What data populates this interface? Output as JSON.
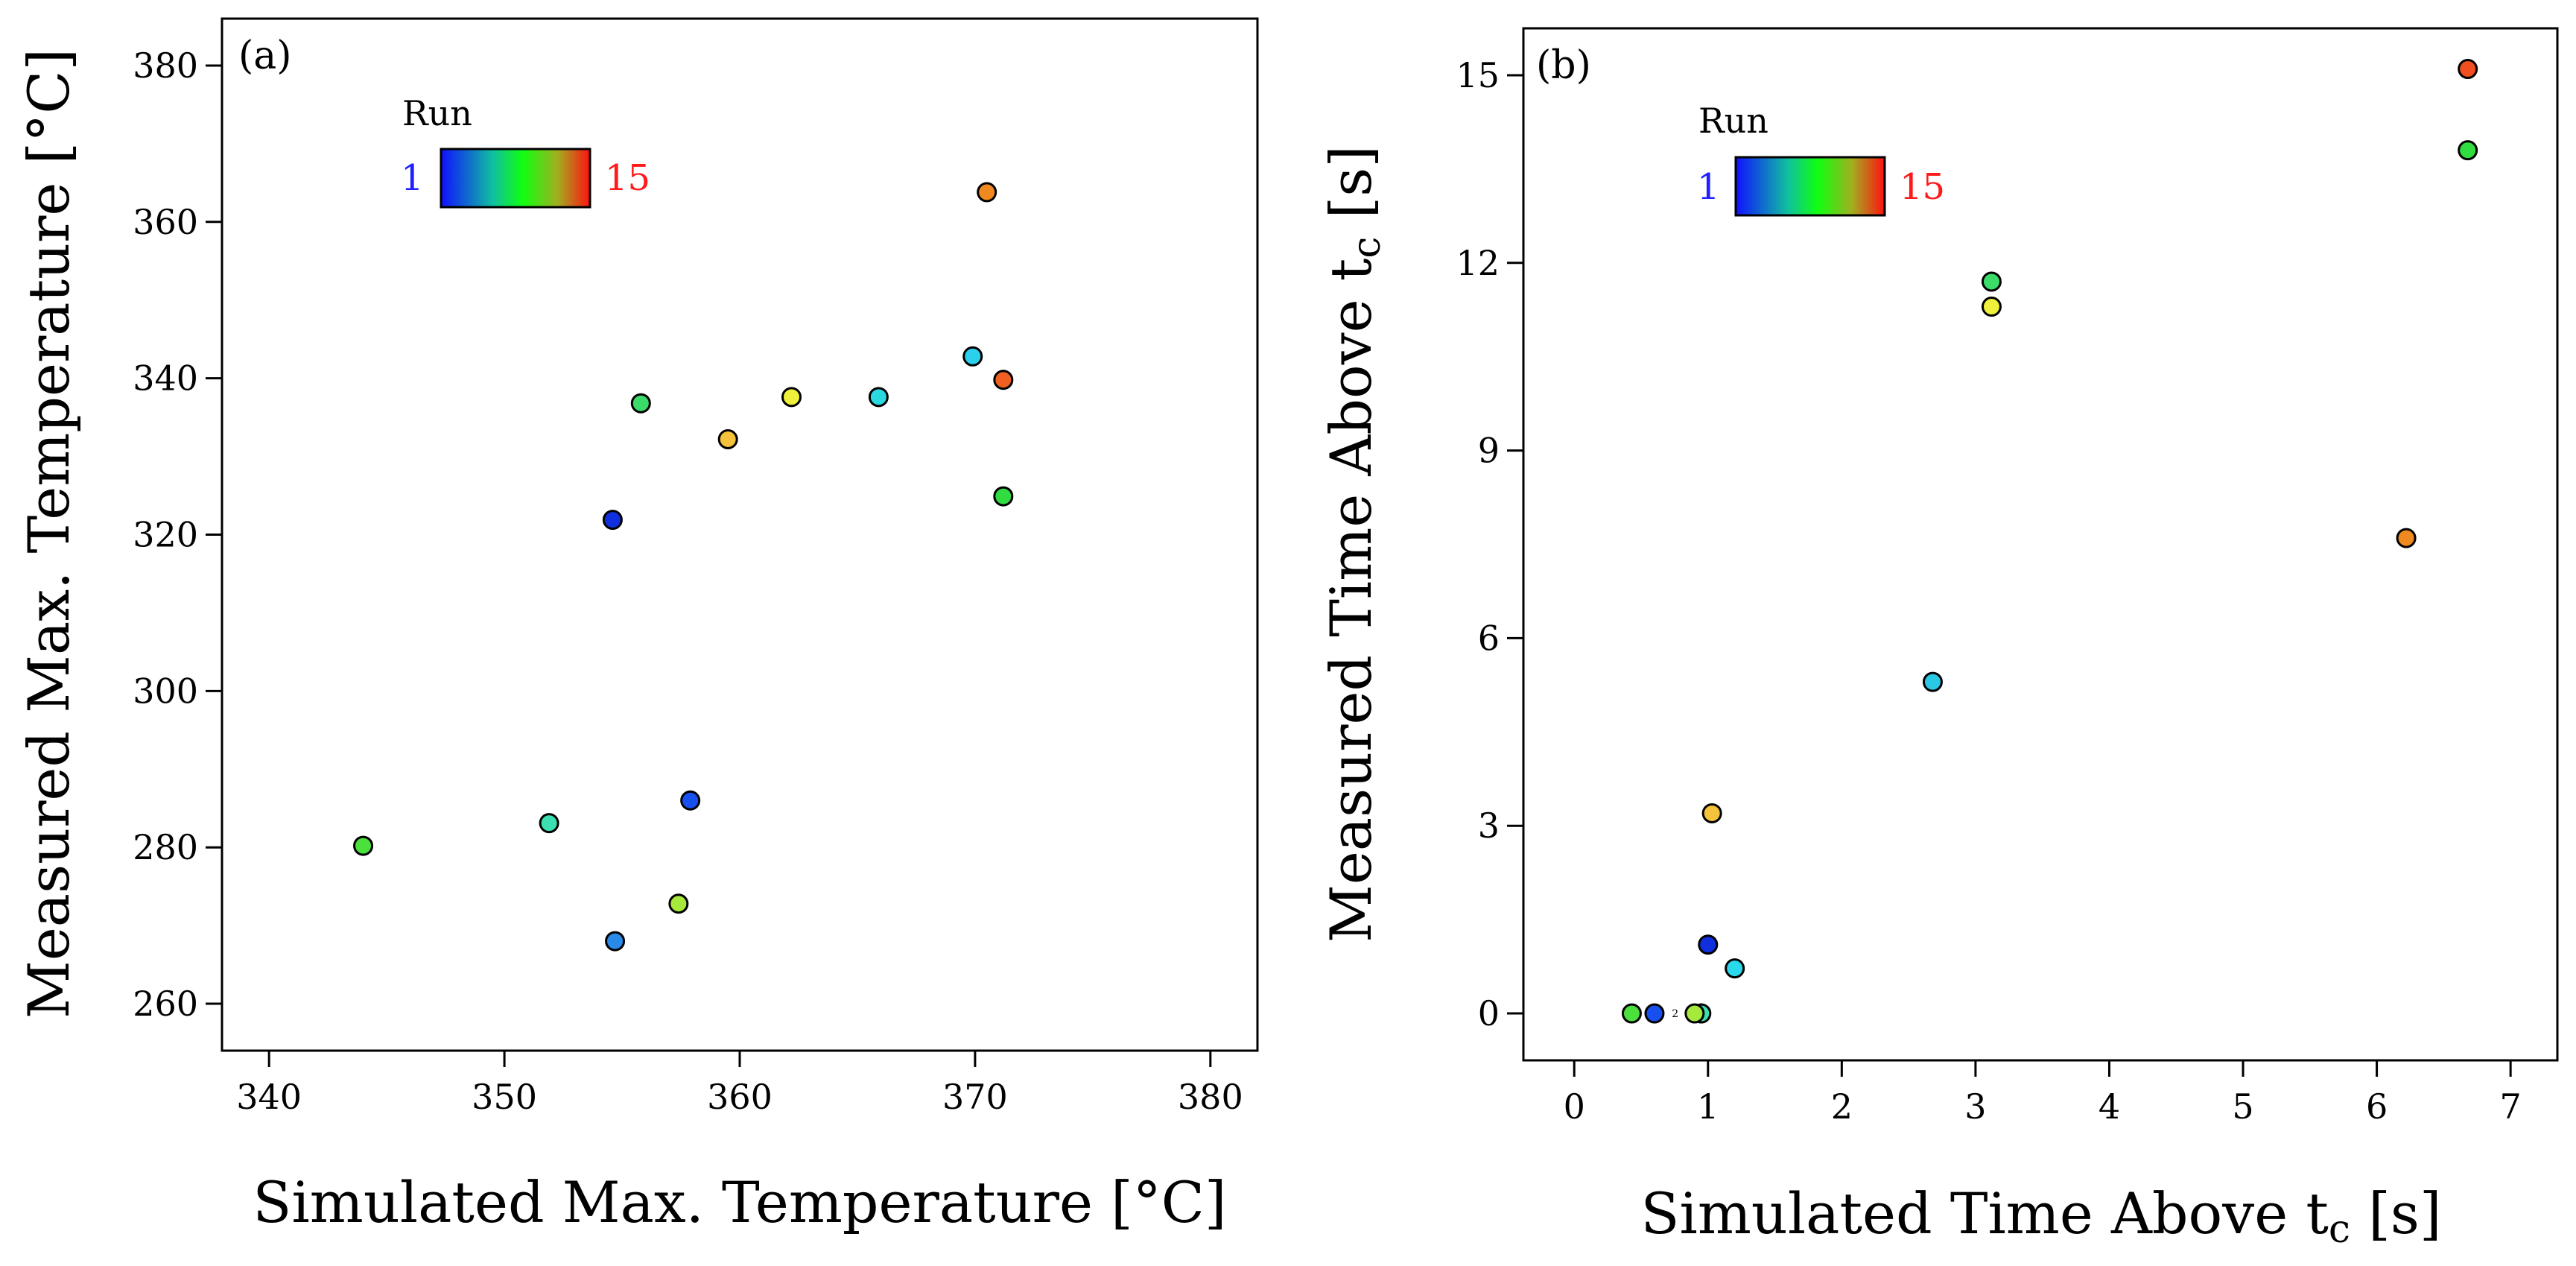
{
  "chart_data": [
    {
      "type": "scatter",
      "panel_label": "(a)",
      "xlabel": "Simulated Max. Temperature [°C]",
      "ylabel": "Measured Max. Temperature [°C]",
      "xlim": [
        338,
        382
      ],
      "ylim": [
        254,
        386
      ],
      "xticks": [
        "340",
        "350",
        "360",
        "370",
        "380"
      ],
      "yticks": [
        "260",
        "280",
        "300",
        "320",
        "340",
        "360",
        "380"
      ],
      "grid": false,
      "legend": {
        "title": "Run",
        "min": "1",
        "max": "15",
        "placement": "top-left",
        "min_color": "#1f1fff",
        "max_color": "#ff1a1a"
      },
      "points": [
        {
          "x": 354.6,
          "y": 321.9,
          "color": "#1030e0"
        },
        {
          "x": 357.9,
          "y": 286.0,
          "color": "#1850f0"
        },
        {
          "x": 354.7,
          "y": 268.0,
          "color": "#2a8ae8"
        },
        {
          "x": 369.9,
          "y": 342.8,
          "color": "#2ad0ec"
        },
        {
          "x": 365.9,
          "y": 337.6,
          "color": "#2ad8e0"
        },
        {
          "x": 351.9,
          "y": 283.1,
          "color": "#3ce0b0"
        },
        {
          "x": 355.8,
          "y": 336.8,
          "color": "#3cdc6a"
        },
        {
          "x": 371.2,
          "y": 324.9,
          "color": "#30dc40"
        },
        {
          "x": 344.0,
          "y": 280.2,
          "color": "#4ce03c"
        },
        {
          "x": 357.4,
          "y": 272.8,
          "color": "#a6e83c"
        },
        {
          "x": 362.2,
          "y": 337.6,
          "color": "#eef03c"
        },
        {
          "x": 359.5,
          "y": 332.2,
          "color": "#f5c23c"
        },
        {
          "x": 370.5,
          "y": 363.8,
          "color": "#f08a20"
        },
        {
          "x": 371.2,
          "y": 339.8,
          "color": "#f06020"
        }
      ]
    },
    {
      "type": "scatter",
      "panel_label": "(b)",
      "xlabel": "Simulated Time Above tc [s]",
      "ylabel": "Measured Time Above tc [s]",
      "xlim": [
        -0.38,
        7.35
      ],
      "ylim": [
        -0.75,
        15.75
      ],
      "xticks": [
        "0",
        "1",
        "2",
        "3",
        "4",
        "5",
        "6",
        "7"
      ],
      "yticks": [
        "0",
        "3",
        "6",
        "9",
        "12",
        "15"
      ],
      "grid": false,
      "legend": {
        "title": "Run",
        "min": "1",
        "max": "15",
        "placement": "top-left",
        "min_color": "#1f1fff",
        "max_color": "#ff1a1a"
      },
      "annotation": "2",
      "points": [
        {
          "x": 1.0,
          "y": 1.1,
          "color": "#1030e0"
        },
        {
          "x": 0.6,
          "y": 0.0,
          "color": "#1850f0"
        },
        {
          "x": 1.2,
          "y": 0.72,
          "color": "#2ad8ec"
        },
        {
          "x": 2.68,
          "y": 5.3,
          "color": "#2ac8e4"
        },
        {
          "x": 0.95,
          "y": 0.0,
          "color": "#3ce0b0"
        },
        {
          "x": 3.12,
          "y": 11.7,
          "color": "#3cdc6a"
        },
        {
          "x": 6.68,
          "y": 13.8,
          "color": "#30dc40"
        },
        {
          "x": 0.43,
          "y": 0.0,
          "color": "#4ce03c"
        },
        {
          "x": 0.9,
          "y": 0.0,
          "color": "#a6e83c"
        },
        {
          "x": 3.12,
          "y": 11.3,
          "color": "#eef03c"
        },
        {
          "x": 1.03,
          "y": 3.2,
          "color": "#f5c23c"
        },
        {
          "x": 6.22,
          "y": 7.6,
          "color": "#f08a20"
        },
        {
          "x": 6.68,
          "y": 15.1,
          "color": "#f05020"
        }
      ]
    }
  ]
}
